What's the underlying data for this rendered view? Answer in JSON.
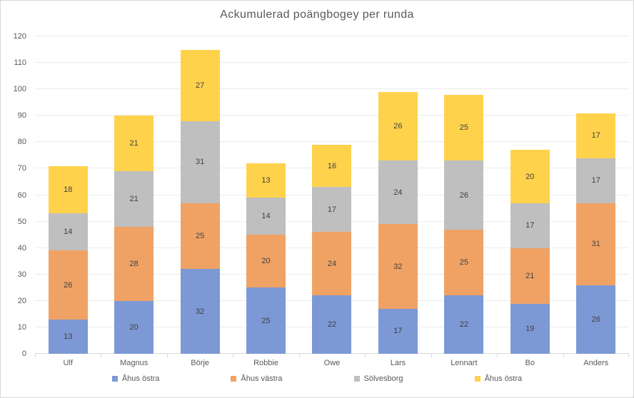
{
  "chart_data": {
    "type": "bar",
    "stacked": true,
    "title": "Ackumulerad poängbogey per runda",
    "categories": [
      "Ulf",
      "Magnus",
      "Börje",
      "Robbie",
      "Owe",
      "Lars",
      "Lennart",
      "Bo",
      "Anders"
    ],
    "series": [
      {
        "name": "Åhus östra",
        "color": "#7c99d5",
        "values": [
          13,
          20,
          32,
          25,
          22,
          17,
          22,
          19,
          26
        ]
      },
      {
        "name": "Åhus västra",
        "color": "#f0a264",
        "values": [
          26,
          28,
          25,
          20,
          24,
          32,
          25,
          21,
          31
        ]
      },
      {
        "name": "Sölvesborg",
        "color": "#bfbfbf",
        "values": [
          14,
          21,
          31,
          14,
          17,
          24,
          26,
          17,
          17
        ]
      },
      {
        "name": "Åhus östra",
        "color": "#ffd24c",
        "values": [
          18,
          21,
          27,
          13,
          16,
          26,
          25,
          20,
          17
        ]
      }
    ],
    "totals": [
      71,
      90,
      115,
      72,
      79,
      99,
      98,
      77,
      91
    ],
    "ylim": [
      0,
      120
    ],
    "yticks": [
      0,
      10,
      20,
      30,
      40,
      50,
      60,
      70,
      80,
      90,
      100,
      110,
      120
    ],
    "grid": true,
    "legend_position": "bottom",
    "data_labels": true
  },
  "colors": {
    "title_text": "#595959",
    "axis_text": "#595959",
    "data_label_text": "#404040",
    "gridline": "#ececec",
    "axis_line": "#d9d9d9",
    "frame_border": "#d7d7d7",
    "background": "#ffffff"
  }
}
